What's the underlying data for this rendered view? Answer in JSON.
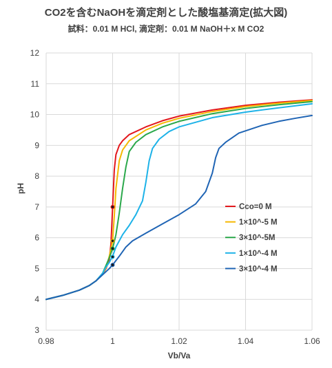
{
  "chart_data": {
    "type": "line",
    "title": "CO2を含むNaOHを滴定剤とした酸塩基滴定(拡大図)",
    "subtitle": "試料：0.01 M HCl,  滴定剤：0.01 M NaOH＋x M CO2",
    "xlabel": "Vb/Va",
    "ylabel": "pH",
    "xlim": [
      0.98,
      1.06
    ],
    "ylim": [
      3,
      12
    ],
    "xticks": [
      0.98,
      1,
      1.02,
      1.04,
      1.06
    ],
    "xtick_labels": [
      "0.98",
      "1",
      "1.02",
      "1.04",
      "1.06"
    ],
    "yticks": [
      3,
      4,
      5,
      6,
      7,
      8,
      9,
      10,
      11,
      12
    ],
    "ytick_labels": [
      "3",
      "4",
      "5",
      "6",
      "7",
      "8",
      "9",
      "10",
      "11",
      "12"
    ],
    "grid": true,
    "legend_position": "right",
    "series": [
      {
        "name": "Cco=0 M",
        "color": "#e3171c",
        "points": [
          [
            0.98,
            4.0
          ],
          [
            0.985,
            4.13
          ],
          [
            0.99,
            4.3
          ],
          [
            0.993,
            4.45
          ],
          [
            0.995,
            4.6
          ],
          [
            0.997,
            4.82
          ],
          [
            0.998,
            5.0
          ],
          [
            0.999,
            5.3
          ],
          [
            0.9995,
            5.8
          ],
          [
            1.0,
            7.0
          ],
          [
            1.0005,
            8.2
          ],
          [
            1.001,
            8.7
          ],
          [
            1.002,
            9.0
          ],
          [
            1.003,
            9.15
          ],
          [
            1.005,
            9.35
          ],
          [
            1.01,
            9.6
          ],
          [
            1.015,
            9.8
          ],
          [
            1.02,
            9.95
          ],
          [
            1.03,
            10.15
          ],
          [
            1.04,
            10.3
          ],
          [
            1.05,
            10.4
          ],
          [
            1.06,
            10.48
          ]
        ]
      },
      {
        "name": "1×10^-5 M",
        "color": "#f5b800",
        "points": [
          [
            0.98,
            4.0
          ],
          [
            0.985,
            4.13
          ],
          [
            0.99,
            4.3
          ],
          [
            0.993,
            4.45
          ],
          [
            0.995,
            4.6
          ],
          [
            0.997,
            4.83
          ],
          [
            0.998,
            5.02
          ],
          [
            0.999,
            5.4
          ],
          [
            1.0,
            5.9
          ],
          [
            1.0005,
            6.7
          ],
          [
            1.001,
            7.6
          ],
          [
            1.002,
            8.5
          ],
          [
            1.003,
            8.85
          ],
          [
            1.005,
            9.15
          ],
          [
            1.01,
            9.5
          ],
          [
            1.015,
            9.72
          ],
          [
            1.02,
            9.88
          ],
          [
            1.03,
            10.1
          ],
          [
            1.04,
            10.26
          ],
          [
            1.05,
            10.37
          ],
          [
            1.06,
            10.46
          ]
        ]
      },
      {
        "name": "3×10^-5M",
        "color": "#2aa84a",
        "points": [
          [
            0.98,
            4.0
          ],
          [
            0.985,
            4.13
          ],
          [
            0.99,
            4.3
          ],
          [
            0.993,
            4.45
          ],
          [
            0.995,
            4.6
          ],
          [
            0.997,
            4.85
          ],
          [
            0.998,
            5.1
          ],
          [
            0.999,
            5.35
          ],
          [
            1.0,
            5.65
          ],
          [
            1.001,
            6.1
          ],
          [
            1.002,
            6.8
          ],
          [
            1.003,
            7.6
          ],
          [
            1.004,
            8.3
          ],
          [
            1.005,
            8.8
          ],
          [
            1.007,
            9.1
          ],
          [
            1.01,
            9.35
          ],
          [
            1.015,
            9.6
          ],
          [
            1.02,
            9.78
          ],
          [
            1.03,
            10.03
          ],
          [
            1.04,
            10.2
          ],
          [
            1.05,
            10.32
          ],
          [
            1.06,
            10.42
          ]
        ]
      },
      {
        "name": "1×10^-4 M",
        "color": "#1cb2e8",
        "points": [
          [
            0.98,
            4.0
          ],
          [
            0.985,
            4.13
          ],
          [
            0.99,
            4.3
          ],
          [
            0.993,
            4.45
          ],
          [
            0.995,
            4.6
          ],
          [
            0.997,
            4.85
          ],
          [
            0.998,
            5.05
          ],
          [
            0.999,
            5.2
          ],
          [
            1.0,
            5.4
          ],
          [
            1.001,
            5.7
          ],
          [
            1.003,
            6.1
          ],
          [
            1.005,
            6.4
          ],
          [
            1.007,
            6.75
          ],
          [
            1.009,
            7.2
          ],
          [
            1.01,
            7.8
          ],
          [
            1.011,
            8.5
          ],
          [
            1.012,
            8.9
          ],
          [
            1.014,
            9.2
          ],
          [
            1.017,
            9.45
          ],
          [
            1.02,
            9.6
          ],
          [
            1.03,
            9.9
          ],
          [
            1.04,
            10.08
          ],
          [
            1.05,
            10.22
          ],
          [
            1.06,
            10.35
          ]
        ]
      },
      {
        "name": "3×10^-4 M",
        "color": "#1f64b4",
        "points": [
          [
            0.98,
            4.0
          ],
          [
            0.985,
            4.13
          ],
          [
            0.99,
            4.3
          ],
          [
            0.993,
            4.45
          ],
          [
            0.995,
            4.6
          ],
          [
            0.997,
            4.8
          ],
          [
            0.999,
            5.0
          ],
          [
            1.0,
            5.12
          ],
          [
            1.002,
            5.4
          ],
          [
            1.004,
            5.7
          ],
          [
            1.006,
            5.9
          ],
          [
            1.01,
            6.15
          ],
          [
            1.015,
            6.45
          ],
          [
            1.02,
            6.75
          ],
          [
            1.025,
            7.1
          ],
          [
            1.028,
            7.5
          ],
          [
            1.03,
            8.1
          ],
          [
            1.031,
            8.6
          ],
          [
            1.032,
            8.9
          ],
          [
            1.034,
            9.1
          ],
          [
            1.038,
            9.4
          ],
          [
            1.045,
            9.65
          ],
          [
            1.05,
            9.78
          ],
          [
            1.055,
            9.88
          ],
          [
            1.06,
            9.97
          ]
        ]
      }
    ],
    "markers": [
      {
        "x": 1.0,
        "y": 7.0,
        "color": "#e3171c"
      },
      {
        "x": 1.0,
        "y": 5.9,
        "color": "#f5b800"
      },
      {
        "x": 1.0,
        "y": 5.65,
        "color": "#2aa84a"
      },
      {
        "x": 1.0,
        "y": 5.38,
        "color": "#1cb2e8"
      },
      {
        "x": 1.0,
        "y": 5.12,
        "color": "#1f64b4"
      }
    ]
  }
}
